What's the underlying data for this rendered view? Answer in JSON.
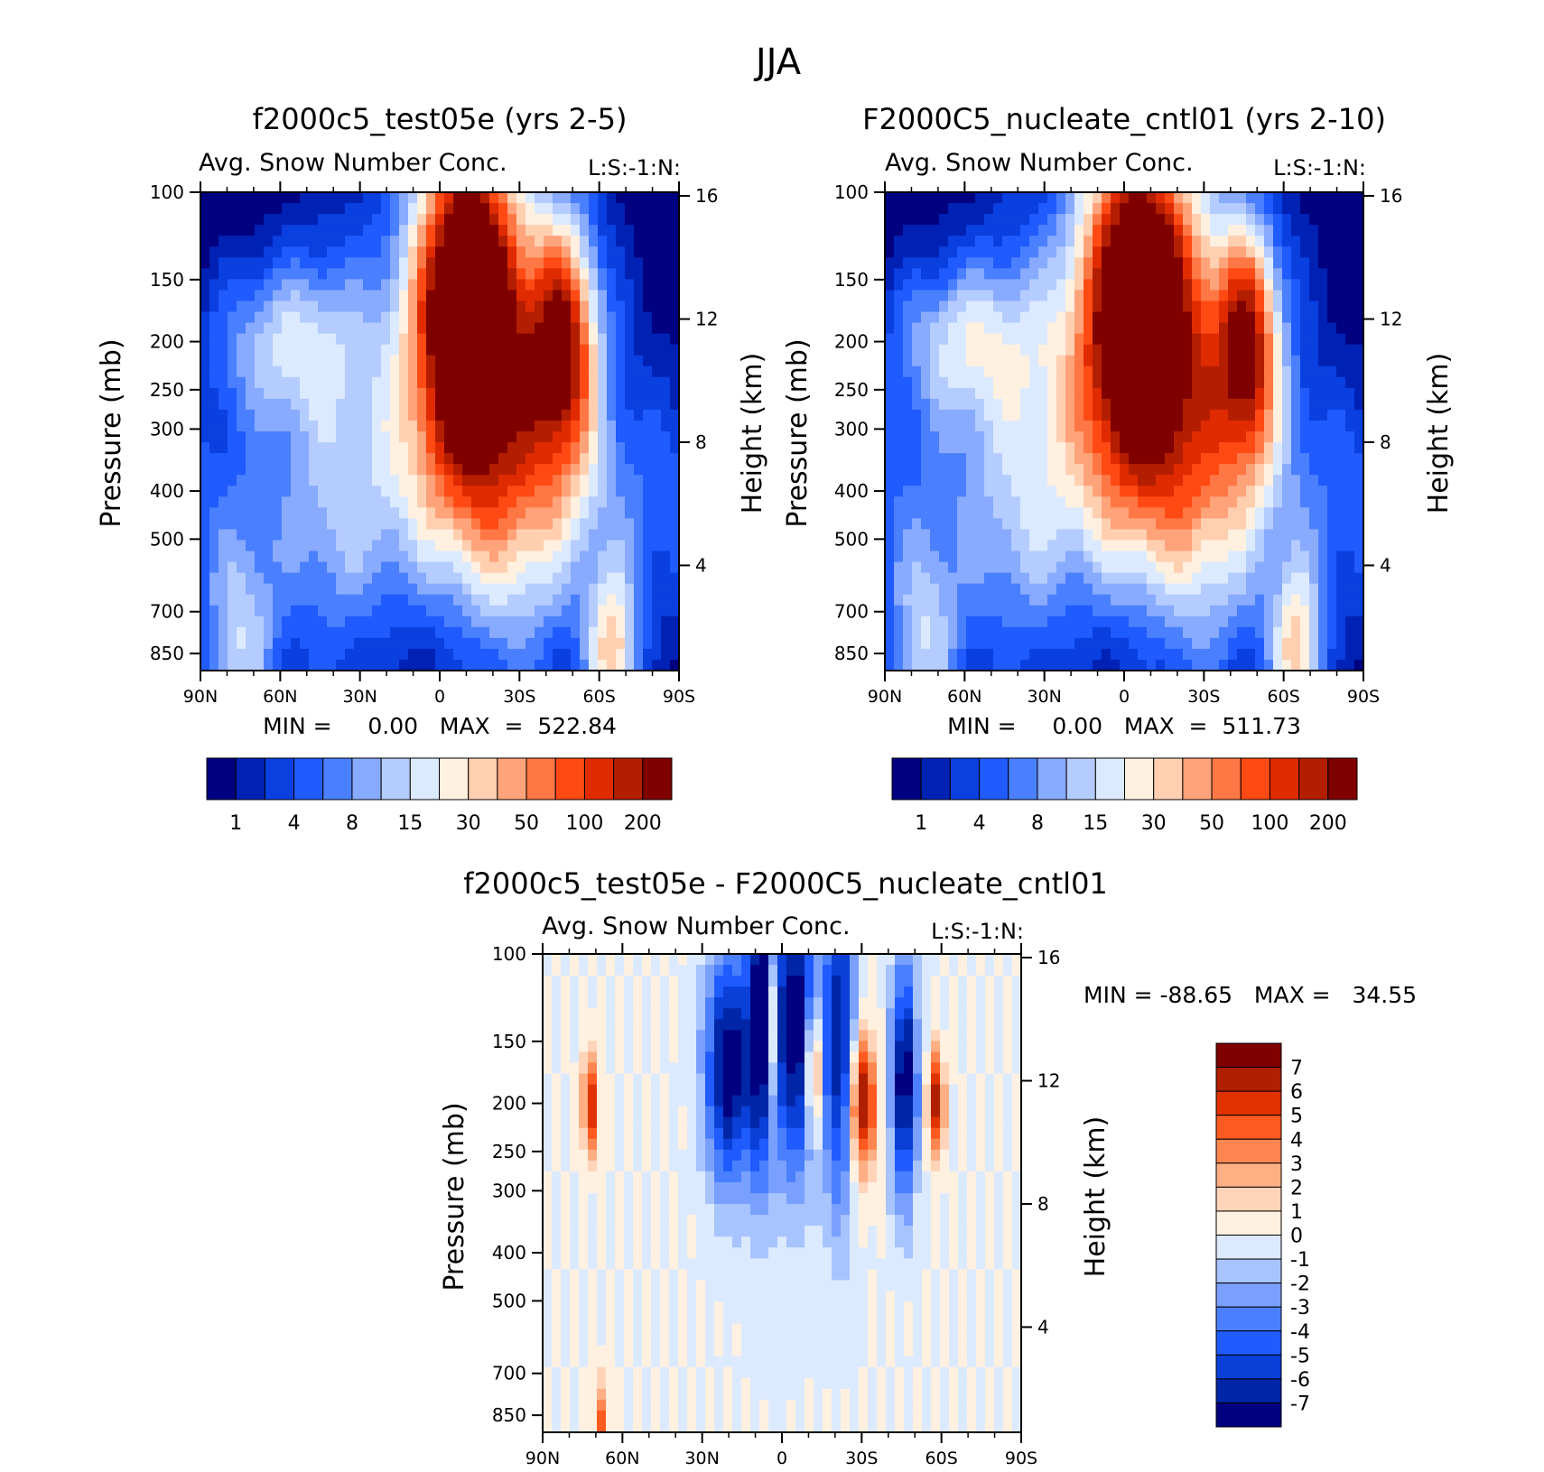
{
  "title": "JJA",
  "palettes": {
    "abs": [
      "#000080",
      "#0022b4",
      "#0a3fe0",
      "#1f5bff",
      "#4a80ff",
      "#88aaff",
      "#b4ccff",
      "#dceaff",
      "#fff0e0",
      "#ffcfb0",
      "#ffa37a",
      "#ff7744",
      "#ff4a14",
      "#e02b00",
      "#b41e00",
      "#800000"
    ],
    "diff": [
      "#000080",
      "#0026a8",
      "#0a3fd8",
      "#1f5bff",
      "#4a80ff",
      "#7aa0ff",
      "#a8c4ff",
      "#dceaff",
      "#fff0e0",
      "#ffd4b8",
      "#ffaf84",
      "#ff8650",
      "#ff5a20",
      "#e03300",
      "#b01f00",
      "#800000"
    ]
  },
  "chart_data": [
    {
      "type": "heatmap",
      "title": "f2000c5_test05e (yrs 2-5)",
      "subtitle": "Avg. Snow Number Conc.",
      "subtitle_right": "L:S:-1:N:",
      "xlabel": "",
      "ylabel": "Pressure (mb)",
      "ylabel_right": "Height (km)",
      "x_ticks": [
        "90N",
        "60N",
        "30N",
        "0",
        "30S",
        "60S",
        "90S"
      ],
      "y_ticks": [
        100,
        150,
        200,
        250,
        300,
        400,
        500,
        700,
        850
      ],
      "y_ticks_right": [
        16,
        12,
        8,
        4
      ],
      "stats": "MIN =     0.00   MAX  =  522.84",
      "min": 0.0,
      "max": 522.84,
      "colorbar_labels": [
        "1",
        "4",
        "8",
        "15",
        "30",
        "50",
        "100",
        "200"
      ],
      "features": [
        {
          "lat": -10,
          "p": 150,
          "w": 20,
          "h": 0.22,
          "amp": 4.1
        },
        {
          "lat": -47,
          "p": 200,
          "w": 13,
          "h": 0.15,
          "amp": 2.9
        },
        {
          "lat": -15,
          "p": 240,
          "w": 45,
          "h": 0.22,
          "amp": 2.0
        },
        {
          "lat": 60,
          "p": 200,
          "w": 28,
          "h": 0.1,
          "amp": 1.6
        },
        {
          "lat": -65,
          "p": 870,
          "w": 10,
          "h": 0.1,
          "amp": 2.4
        },
        {
          "lat": 75,
          "p": 870,
          "w": 14,
          "h": 0.13,
          "amp": 1.6
        },
        {
          "lat": -30,
          "p": 500,
          "w": 20,
          "h": 0.4,
          "amp": 0.8
        },
        {
          "lat": 40,
          "p": 500,
          "w": 20,
          "h": 0.4,
          "amp": 0.6
        }
      ]
    },
    {
      "type": "heatmap",
      "title": "F2000C5_nucleate_cntl01 (yrs 2-10)",
      "subtitle": "Avg. Snow Number Conc.",
      "subtitle_right": "L:S:-1:N:",
      "xlabel": "",
      "ylabel": "Pressure (mb)",
      "ylabel_right": "Height (km)",
      "x_ticks": [
        "90N",
        "60N",
        "30N",
        "0",
        "30S",
        "60S",
        "90S"
      ],
      "y_ticks": [
        100,
        150,
        200,
        250,
        300,
        400,
        500,
        700,
        850
      ],
      "y_ticks_right": [
        16,
        12,
        8,
        4
      ],
      "stats": "MIN =     0.00   MAX  =  511.73",
      "min": 0.0,
      "max": 511.73,
      "colorbar_labels": [
        "1",
        "4",
        "8",
        "15",
        "30",
        "50",
        "100",
        "200"
      ],
      "features": [
        {
          "lat": -5,
          "p": 150,
          "w": 22,
          "h": 0.22,
          "amp": 4.1
        },
        {
          "lat": -47,
          "p": 200,
          "w": 12,
          "h": 0.14,
          "amp": 3.0
        },
        {
          "lat": -10,
          "p": 240,
          "w": 48,
          "h": 0.22,
          "amp": 2.0
        },
        {
          "lat": 62,
          "p": 200,
          "w": 28,
          "h": 0.1,
          "amp": 1.7
        },
        {
          "lat": -65,
          "p": 870,
          "w": 10,
          "h": 0.1,
          "amp": 2.4
        },
        {
          "lat": 75,
          "p": 870,
          "w": 14,
          "h": 0.13,
          "amp": 1.6
        },
        {
          "lat": -30,
          "p": 500,
          "w": 20,
          "h": 0.4,
          "amp": 0.8
        },
        {
          "lat": 40,
          "p": 500,
          "w": 20,
          "h": 0.4,
          "amp": 0.6
        }
      ]
    },
    {
      "type": "heatmap",
      "title": "f2000c5_test05e - F2000C5_nucleate_cntl01",
      "subtitle": "Avg. Snow Number Conc.",
      "subtitle_right": "L:S:-1:N:",
      "xlabel": "",
      "ylabel": "Pressure (mb)",
      "ylabel_right": "Height (km)",
      "x_ticks": [
        "90N",
        "60N",
        "30N",
        "0",
        "30S",
        "60S",
        "90S"
      ],
      "y_ticks": [
        100,
        150,
        200,
        250,
        300,
        400,
        500,
        700,
        850
      ],
      "y_ticks_right": [
        16,
        12,
        8,
        4
      ],
      "stats": "MIN = -88.65   MAX =   34.55",
      "min": -88.65,
      "max": 34.55,
      "colorbar_labels": [
        "7",
        "6",
        "5",
        "4",
        "3",
        "2",
        "1",
        "0",
        "-1",
        "-2",
        "-3",
        "-4",
        "-5",
        "-6",
        "-7"
      ],
      "features": [
        {
          "lat": 20,
          "p": 170,
          "w": 9,
          "h": 0.14,
          "amp": -8
        },
        {
          "lat": -5,
          "p": 140,
          "w": 9,
          "h": 0.18,
          "amp": -8
        },
        {
          "lat": -22,
          "p": 150,
          "w": 6,
          "h": 0.2,
          "amp": -7
        },
        {
          "lat": -46,
          "p": 180,
          "w": 5,
          "h": 0.14,
          "amp": -8
        },
        {
          "lat": 8,
          "p": 130,
          "w": 5,
          "h": 0.2,
          "amp": -7
        },
        {
          "lat": -30,
          "p": 200,
          "w": 5,
          "h": 0.08,
          "amp": 8
        },
        {
          "lat": -58,
          "p": 200,
          "w": 3,
          "h": 0.06,
          "amp": 7
        },
        {
          "lat": 72,
          "p": 200,
          "w": 3,
          "h": 0.06,
          "amp": 6
        },
        {
          "lat": -12,
          "p": 170,
          "w": 3,
          "h": 0.08,
          "amp": 7
        },
        {
          "lat": 4,
          "p": 140,
          "w": 2,
          "h": 0.1,
          "amp": 7
        },
        {
          "lat": 68,
          "p": 880,
          "w": 3,
          "h": 0.05,
          "amp": 4
        }
      ]
    }
  ]
}
